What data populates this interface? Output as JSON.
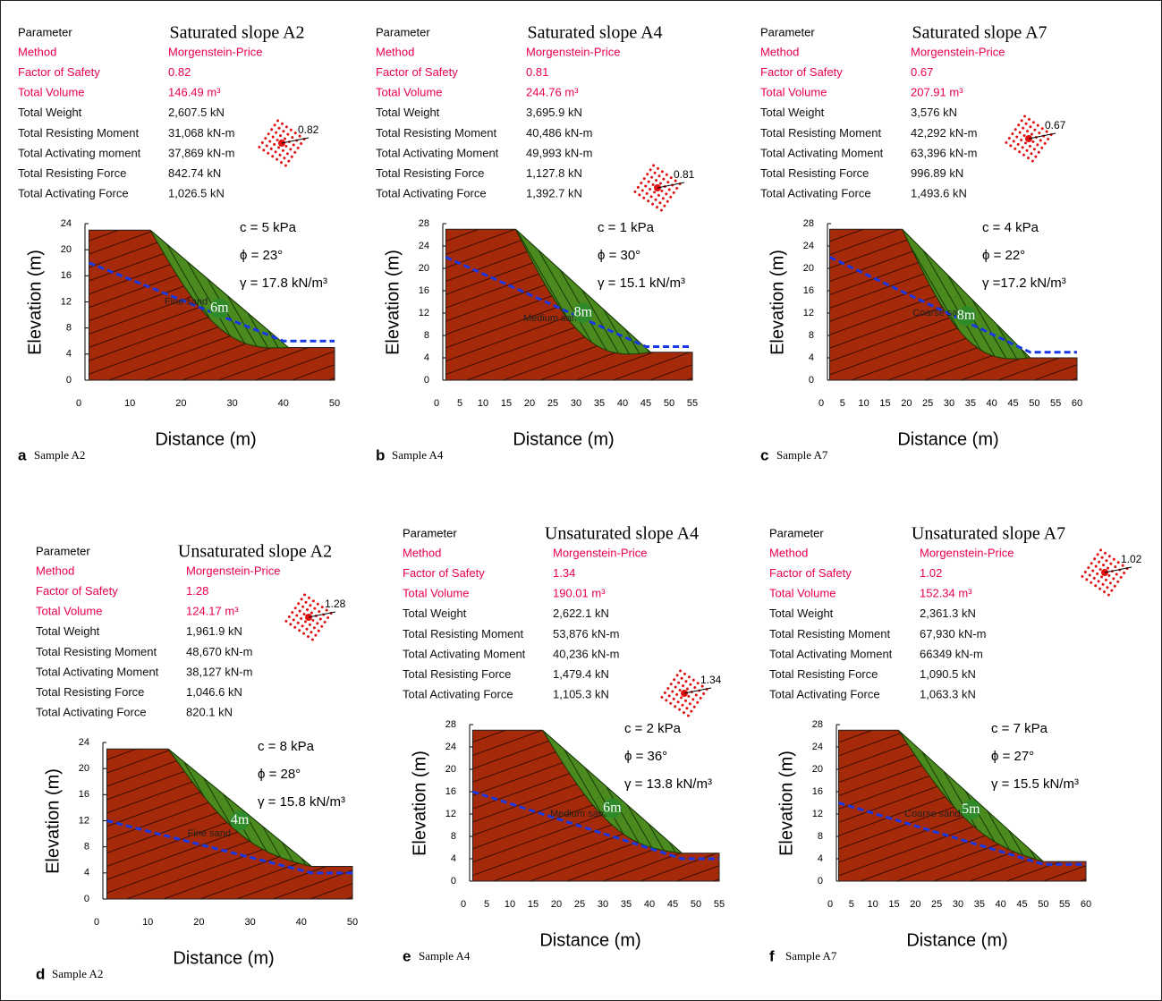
{
  "panels": [
    {
      "title": "Saturated slope  A2",
      "parameter_header": "Parameter",
      "rows": [
        {
          "label": "Method",
          "value": "Morgenstein-Price"
        },
        {
          "label": "Factor of Safety",
          "value": "0.82"
        },
        {
          "label": "Total Volume",
          "value": "146.49 m³"
        },
        {
          "label": "Total Weight",
          "value": "2,607.5 kN"
        },
        {
          "label": "Total Resisting Moment",
          "value": "31,068 kN-m"
        },
        {
          "label": "Total Activating moment",
          "value": "37,869 kN-m"
        },
        {
          "label": "Total Resisting Force",
          "value": "842.74 kN"
        },
        {
          "label": "Total Activating Force",
          "value": "1,026.5 kN"
        }
      ],
      "fos_icon": "0.82",
      "soil": [
        "c = 5 kPa",
        "ϕ = 23°",
        "γ = 17.8 kN/m³"
      ],
      "zone_depth": "6m",
      "material": "Fine sand",
      "y_label": "Elevation (m)",
      "yticks": [
        0,
        4,
        8,
        12,
        16,
        20,
        24
      ],
      "x_label": "Distance (m)",
      "xticks": [
        0,
        10,
        20,
        30,
        40,
        50
      ],
      "letter": "a",
      "caption": "Sample  A2"
    },
    {
      "title": "Saturated slope A4",
      "parameter_header": "Parameter",
      "rows": [
        {
          "label": "Method",
          "value": "Morgenstein-Price"
        },
        {
          "label": "Factor of Safety",
          "value": "0.81"
        },
        {
          "label": "Total Volume",
          "value": "244.76 m³"
        },
        {
          "label": "Total Weight",
          "value": "3,695.9 kN"
        },
        {
          "label": "Total Resisting Moment",
          "value": "40,486 kN-m"
        },
        {
          "label": "Total Activating Moment",
          "value": "49,993 kN-m"
        },
        {
          "label": "Total Resisting Force",
          "value": "1,127.8 kN"
        },
        {
          "label": "Total Activating Force",
          "value": "1,392.7 kN"
        }
      ],
      "fos_icon": "0.81",
      "soil": [
        "c = 1 kPa",
        "ϕ = 30°",
        "γ = 15.1 kN/m³"
      ],
      "zone_depth": "8m",
      "material": "Medium sand",
      "y_label": "Elevation (m)",
      "yticks": [
        0,
        4,
        8,
        12,
        16,
        20,
        24,
        28
      ],
      "x_label": "Distance (m)",
      "xticks": [
        0,
        5,
        10,
        15,
        20,
        25,
        30,
        35,
        40,
        45,
        50,
        55
      ],
      "letter": "b",
      "caption": "Sample A4"
    },
    {
      "title": "Saturated slope A7",
      "parameter_header": "Parameter",
      "rows": [
        {
          "label": "Method",
          "value": "Morgenstein-Price"
        },
        {
          "label": "Factor of Safety",
          "value": "0.67"
        },
        {
          "label": "Total Volume",
          "value": "207.91 m³"
        },
        {
          "label": "Total Weight",
          "value": "3,576 kN"
        },
        {
          "label": "Total Resisting Moment",
          "value": "42,292 kN-m"
        },
        {
          "label": "Total Activating Moment",
          "value": "63,396 kN-m"
        },
        {
          "label": "Total Resisting Force",
          "value": "996.89 kN"
        },
        {
          "label": "Total Activating Force",
          "value": "1,493.6 kN"
        }
      ],
      "fos_icon": "0.67",
      "soil": [
        "c = 4 kPa",
        "ϕ = 22°",
        "γ =17.2 kN/m³"
      ],
      "zone_depth": "8m",
      "material": "Coarse sand",
      "y_label": "Elevation (m)",
      "yticks": [
        0,
        4,
        8,
        12,
        16,
        20,
        24,
        28
      ],
      "x_label": "Distance (m)",
      "xticks": [
        0,
        5,
        10,
        15,
        20,
        25,
        30,
        35,
        40,
        45,
        50,
        55,
        60
      ],
      "letter": "c",
      "caption": "Sample A7"
    },
    {
      "title": "Unsaturated slope A2",
      "parameter_header": "Parameter",
      "rows": [
        {
          "label": "Method",
          "value": "Morgenstein-Price"
        },
        {
          "label": "Factor of Safety",
          "value": "1.28"
        },
        {
          "label": "Total Volume",
          "value": "124.17 m³"
        },
        {
          "label": "Total Weight",
          "value": "1,961.9 kN"
        },
        {
          "label": "Total Resisting Moment",
          "value": "48,670 kN-m"
        },
        {
          "label": "Total Activating Moment",
          "value": "38,127 kN-m"
        },
        {
          "label": "Total Resisting Force",
          "value": "1,046.6 kN"
        },
        {
          "label": "Total Activating Force",
          "value": "820.1 kN"
        }
      ],
      "fos_icon": "1.28",
      "soil": [
        "c = 8 kPa",
        "ϕ = 28°",
        "γ = 15.8 kN/m³"
      ],
      "zone_depth": "4m",
      "material": "Fine sand",
      "y_label": "Elevation (m)",
      "yticks": [
        0,
        4,
        8,
        12,
        16,
        20,
        24
      ],
      "x_label": "Distance (m)",
      "xticks": [
        0,
        10,
        20,
        30,
        40,
        50
      ],
      "letter": "d",
      "caption": "Sample A2"
    },
    {
      "title": "Unsaturated slope A4",
      "parameter_header": "Parameter",
      "rows": [
        {
          "label": "Method",
          "value": "Morgenstein-Price"
        },
        {
          "label": "Factor of Safety",
          "value": "1.34"
        },
        {
          "label": "Total Volume",
          "value": "190.01 m³"
        },
        {
          "label": "Total Weight",
          "value": "2,622.1 kN"
        },
        {
          "label": "Total Resisting Moment",
          "value": "53,876 kN-m"
        },
        {
          "label": "Total Activating Moment",
          "value": "40,236 kN-m"
        },
        {
          "label": "Total Resisting Force",
          "value": "1,479.4 kN"
        },
        {
          "label": "Total Activating Force",
          "value": "1,105.3 kN"
        }
      ],
      "fos_icon": "1.34",
      "soil": [
        "c = 2 kPa",
        "ϕ = 36°",
        "γ = 13.8 kN/m³"
      ],
      "zone_depth": "6m",
      "material": "Medium sand",
      "y_label": "Elevation (m)",
      "yticks": [
        0,
        4,
        8,
        12,
        16,
        20,
        24,
        28
      ],
      "x_label": "Distance (m)",
      "xticks": [
        0,
        5,
        10,
        15,
        20,
        25,
        30,
        35,
        40,
        45,
        50,
        55
      ],
      "letter": "e",
      "caption": "Sample A4"
    },
    {
      "title": "Unsaturated slope A7",
      "parameter_header": "Parameter",
      "rows": [
        {
          "label": "Method",
          "value": "Morgenstein-Price"
        },
        {
          "label": "Factor of Safety",
          "value": "1.02"
        },
        {
          "label": "Total Volume",
          "value": "152.34 m³"
        },
        {
          "label": "Total Weight",
          "value": "2,361.3 kN"
        },
        {
          "label": "Total Resisting Moment",
          "value": "67,930 kN-m"
        },
        {
          "label": "Total Activating Moment",
          "value": "66349 kN-m"
        },
        {
          "label": "Total Resisting Force",
          "value": "1,090.5 kN"
        },
        {
          "label": "Total Activating Force",
          "value": "1,063.3 kN"
        }
      ],
      "fos_icon": "1.02",
      "soil": [
        "c = 7 kPa",
        "ϕ = 27°",
        "γ = 15.5 kN/m³"
      ],
      "zone_depth": "5m",
      "material": "Coarse sand",
      "y_label": "Elevation (m)",
      "yticks": [
        0,
        4,
        8,
        12,
        16,
        20,
        24,
        28
      ],
      "x_label": "Distance (m)",
      "xticks": [
        0,
        5,
        10,
        15,
        20,
        25,
        30,
        35,
        40,
        45,
        50,
        55,
        60
      ],
      "letter": "f",
      "caption": "Sample A7"
    }
  ]
}
